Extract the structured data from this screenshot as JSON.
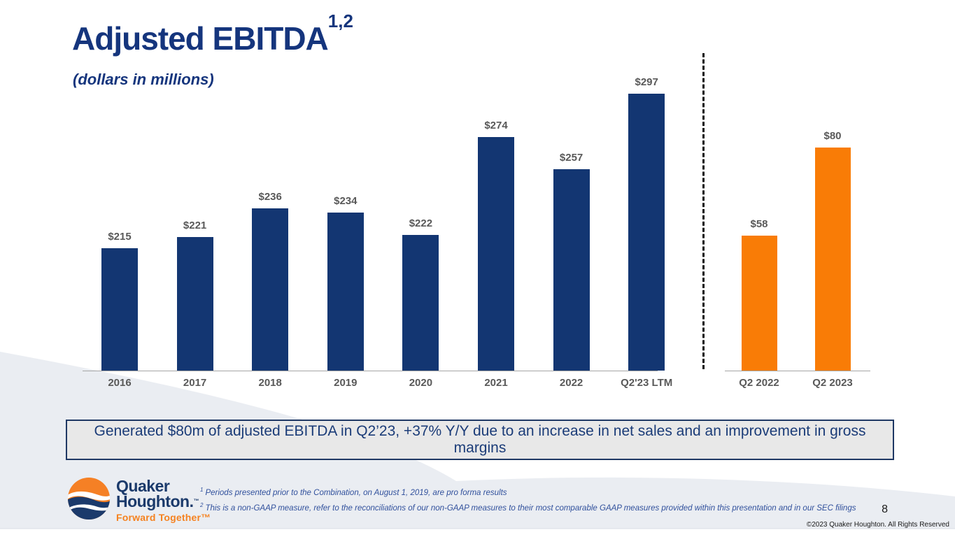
{
  "slide": {
    "title": "Adjusted EBITDA",
    "title_superscript": "1,2",
    "subtitle": "(dollars in millions)",
    "page_number": "8",
    "copyright": "©2023 Quaker Houghton. All Rights Reserved"
  },
  "chart_data": {
    "type": "bar",
    "title": "Adjusted EBITDA",
    "ylabel": "dollars in millions",
    "grid": false,
    "legend": false,
    "value_label_color": "#595959",
    "groups": [
      {
        "name": "annual",
        "bar_color": "#133672",
        "categories": [
          "2016",
          "2017",
          "2018",
          "2019",
          "2020",
          "2021",
          "2022",
          "Q2'23 LTM"
        ],
        "values": [
          215,
          221,
          236,
          234,
          222,
          274,
          257,
          297
        ],
        "labels": [
          "$215",
          "$221",
          "$236",
          "$234",
          "$222",
          "$274",
          "$257",
          "$297"
        ]
      },
      {
        "name": "quarterly",
        "bar_color": "#F97C06",
        "categories": [
          "Q2 2022",
          "Q2 2023"
        ],
        "values": [
          58,
          80
        ],
        "labels": [
          "$58",
          "$80"
        ]
      }
    ]
  },
  "callout": {
    "text": "Generated $80m of adjusted EBITDA in Q2’23, +37% Y/Y due to an increase in net sales and an improvement in gross margins"
  },
  "footnotes": [
    {
      "marker": "1",
      "text": "Periods presented prior to the Combination, on August 1, 2019, are pro forma results"
    },
    {
      "marker": "2",
      "text": "This is a non-GAAP measure, refer to the reconciliations of our non-GAAP measures to their most comparable GAAP measures provided within this presentation and in our SEC filings"
    }
  ],
  "logo": {
    "line1": "Quaker",
    "line2": "Houghton.",
    "trademark": "™",
    "tagline": "Forward Together™"
  },
  "colors": {
    "navy_title": "#15357D",
    "bar_navy": "#133672",
    "bar_orange": "#F97C06",
    "label_gray": "#595959",
    "callout_bg": "#E8E8E8",
    "callout_border": "#1F3864",
    "callout_text": "#1B3C78",
    "swoosh_gray": "#EAEDF2",
    "footnote_blue": "#30509C"
  }
}
